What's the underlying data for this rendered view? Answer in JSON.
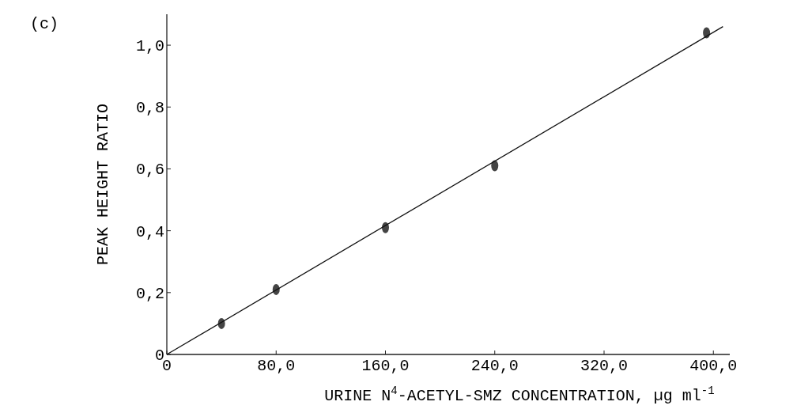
{
  "chart_data": {
    "type": "scatter",
    "xlabel": "URINE N$^{4}$-ACETYL-SMZ CONCENTRATION, µg ml$^{-1}$",
    "ylabel": "PEAK HEIGHT RATIO",
    "annotations": [
      "(c)"
    ],
    "series": [
      {
        "color": "#444444",
        "marker": "circle",
        "x": [
          40,
          80,
          160,
          240,
          395
        ],
        "values": [
          0.1,
          0.21,
          0.41,
          0.61,
          1.04
        ]
      },
      {
        "type": "line",
        "color": "#111111",
        "marker": "none",
        "line_style": "solid",
        "x": [
          0,
          407
        ],
        "values": [
          0,
          1.06
        ]
      }
    ],
    "xlim": [
      0,
      412
    ],
    "ylim": [
      0,
      1.1
    ],
    "xticks": [
      0,
      {
        "value": 80,
        "label": "80,0"
      },
      {
        "value": 160,
        "label": "160,0"
      },
      {
        "value": 240,
        "label": "240,0"
      },
      {
        "value": 320,
        "label": "320,0"
      },
      {
        "value": 400,
        "label": "400,0"
      }
    ],
    "yticks": [
      0,
      {
        "value": 0.2,
        "label": "0,2"
      },
      {
        "value": 0.4,
        "label": "0,4"
      },
      {
        "value": 0.6,
        "label": "0,6"
      },
      {
        "value": 0.8,
        "label": "0,8"
      },
      {
        "value": 1,
        "label": "1,0"
      }
    ],
    "grid": false
  }
}
